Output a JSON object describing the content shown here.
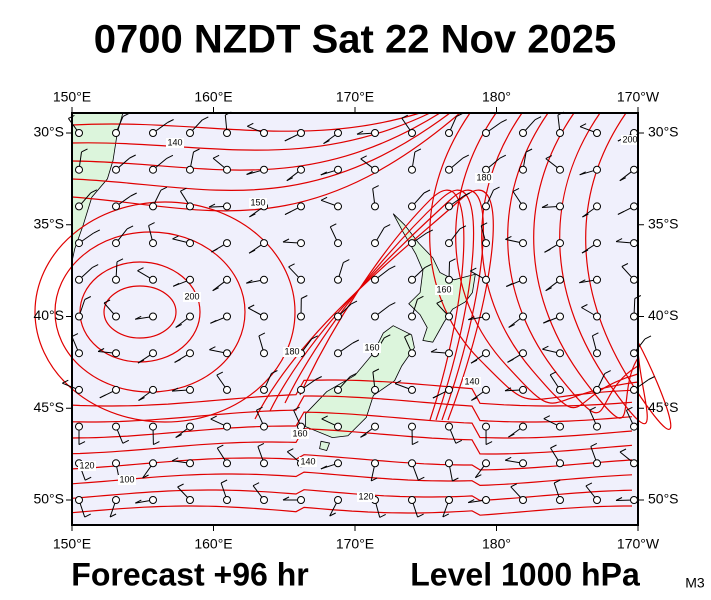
{
  "header": {
    "title": "0700 NZDT Sat 22 Nov 2025"
  },
  "map": {
    "lon_labels": [
      "150°E",
      "160°E",
      "170°E",
      "180°",
      "170°W"
    ],
    "lat_labels": [
      "30°S",
      "35°S",
      "40°S",
      "45°S",
      "50°S"
    ],
    "contour_labels": [
      "140",
      "150",
      "200",
      "180",
      "160",
      "160",
      "140",
      "120",
      "100",
      "120",
      "180",
      "160",
      "140",
      "200"
    ]
  },
  "footer": {
    "forecast": "Forecast +96 hr",
    "level": "Level 1000 hPa",
    "model": "M3"
  }
}
